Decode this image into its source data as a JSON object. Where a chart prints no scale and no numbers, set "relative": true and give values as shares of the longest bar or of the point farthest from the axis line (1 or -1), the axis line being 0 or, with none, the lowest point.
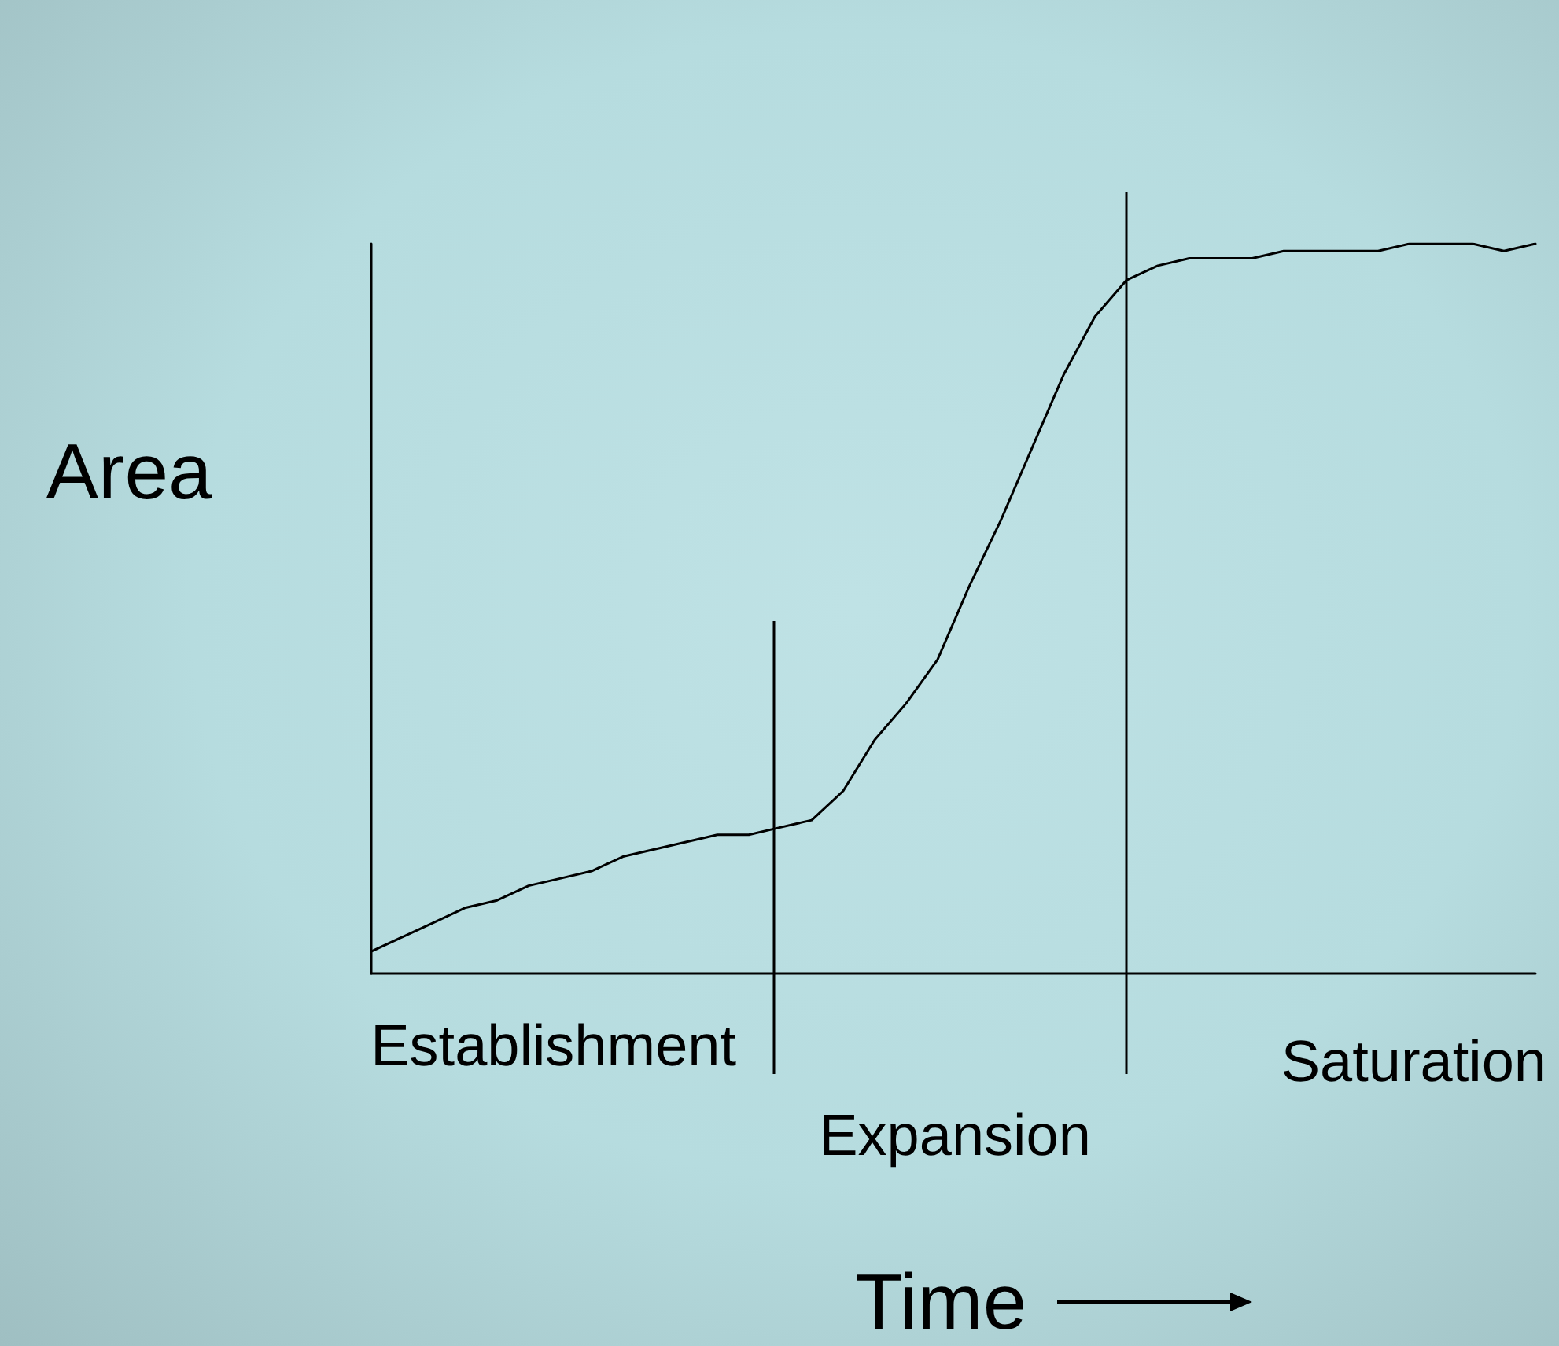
{
  "chart_data": {
    "type": "line",
    "relative": true,
    "xlabel": "Time",
    "ylabel": "Area",
    "categories": [
      null,
      null,
      null,
      null,
      null,
      null,
      null,
      null,
      null,
      null,
      null,
      null,
      null,
      null,
      null,
      null,
      null,
      null,
      null,
      null,
      null,
      null,
      null,
      null,
      null,
      null,
      null,
      null,
      null,
      null,
      null,
      null,
      null,
      null,
      null,
      null,
      null,
      null
    ],
    "series": [
      {
        "color": "#000000",
        "values": [
          0.03,
          0.05,
          0.07,
          0.09,
          0.1,
          0.12,
          0.13,
          0.14,
          0.16,
          0.17,
          0.18,
          0.19,
          0.19,
          0.2,
          0.21,
          0.25,
          0.32,
          0.37,
          0.43,
          0.53,
          0.62,
          0.72,
          0.82,
          0.9,
          0.95,
          0.97,
          0.98,
          0.98,
          0.98,
          0.99,
          0.99,
          0.99,
          0.99,
          1.0,
          1.0,
          1.0,
          0.99,
          1.0
        ]
      }
    ],
    "annotations": [
      "Establishment",
      "Expansion",
      "Saturation"
    ],
    "grid": false,
    "marker": "none",
    "line_style": "solid"
  }
}
